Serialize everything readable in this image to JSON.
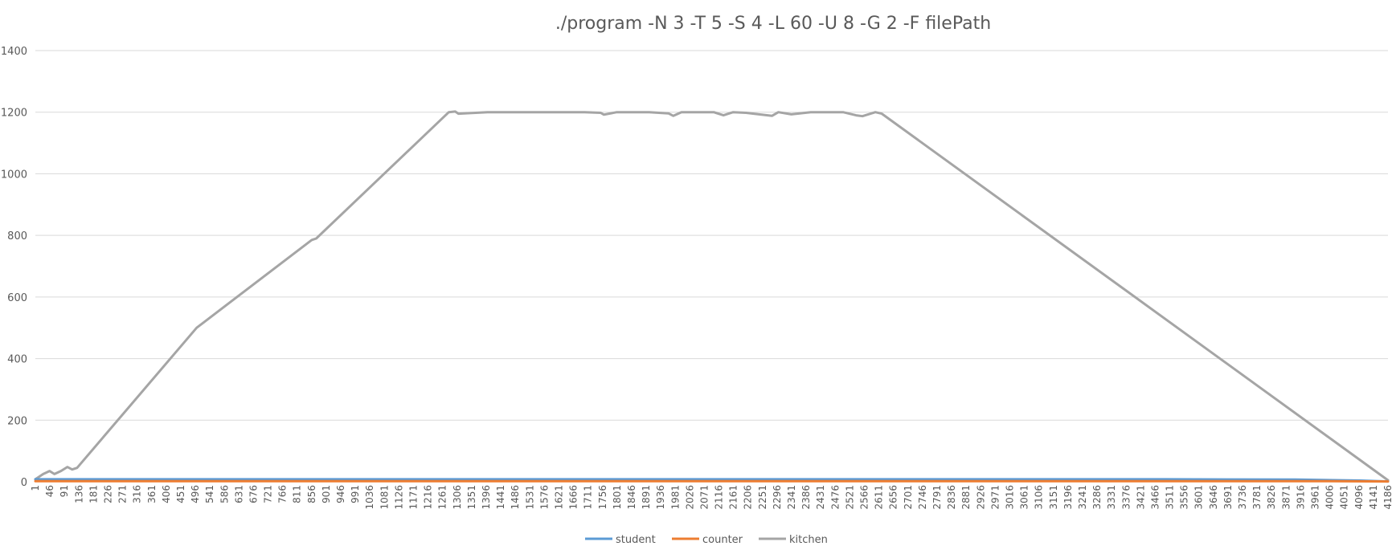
{
  "chart_data": {
    "type": "line",
    "title": "./program -N 3 -T 5 -S 4 -L 60 -U 8 -G 2 -F filePath",
    "xlabel": "",
    "ylabel": "",
    "ylim": [
      0,
      1400
    ],
    "yticks": [
      0,
      200,
      400,
      600,
      800,
      1000,
      1200,
      1400
    ],
    "xlim": [
      1,
      4186
    ],
    "xticks_start": 1,
    "xticks_step": 45,
    "xticks_end": 4186,
    "grid": true,
    "legend_position": "bottom",
    "series": [
      {
        "name": "student",
        "color": "#5b9bd5",
        "x": [
          1,
          200,
          500,
          1000,
          1500,
          2000,
          2500,
          3000,
          3500,
          3900,
          4100,
          4186
        ],
        "y": [
          8,
          8,
          8,
          8,
          8,
          8,
          8,
          8,
          8,
          7,
          4,
          1
        ]
      },
      {
        "name": "counter",
        "color": "#ed7d31",
        "x": [
          1,
          500,
          1000,
          2000,
          3000,
          4000,
          4186
        ],
        "y": [
          2,
          2,
          2,
          2,
          2,
          2,
          1
        ]
      },
      {
        "name": "kitchen",
        "color": "#a5a5a5",
        "x": [
          1,
          25,
          45,
          60,
          80,
          100,
          115,
          130,
          500,
          856,
          870,
          1200,
          1280,
          1300,
          1310,
          1400,
          1500,
          1600,
          1700,
          1750,
          1760,
          1800,
          1900,
          1960,
          1975,
          2000,
          2100,
          2130,
          2160,
          2200,
          2280,
          2300,
          2340,
          2400,
          2500,
          2540,
          2560,
          2600,
          2620,
          4186
        ],
        "y": [
          8,
          25,
          35,
          25,
          35,
          48,
          40,
          45,
          500,
          785,
          790,
          1120,
          1200,
          1202,
          1195,
          1200,
          1200,
          1200,
          1200,
          1198,
          1192,
          1200,
          1200,
          1196,
          1188,
          1200,
          1200,
          1190,
          1200,
          1198,
          1188,
          1200,
          1193,
          1200,
          1200,
          1190,
          1187,
          1200,
          1195,
          5
        ]
      }
    ]
  }
}
